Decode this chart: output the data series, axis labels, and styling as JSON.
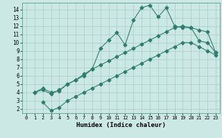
{
  "title": "",
  "xlabel": "Humidex (Indice chaleur)",
  "bg_color": "#cce8e4",
  "line_color": "#2e7d6e",
  "grid_color": "#a8ccc8",
  "xlim": [
    -0.5,
    23.5
  ],
  "ylim": [
    1.5,
    14.8
  ],
  "xticks": [
    0,
    1,
    2,
    3,
    4,
    5,
    6,
    7,
    8,
    9,
    10,
    11,
    12,
    13,
    14,
    15,
    16,
    17,
    18,
    19,
    20,
    21,
    22,
    23
  ],
  "yticks": [
    2,
    3,
    4,
    5,
    6,
    7,
    8,
    9,
    10,
    11,
    12,
    13,
    14
  ],
  "top_x": [
    1,
    2,
    3,
    4,
    5,
    6,
    7,
    8,
    9,
    10,
    11,
    12,
    13,
    14,
    15,
    16,
    17,
    18,
    19,
    20,
    21,
    22,
    23
  ],
  "top_y": [
    4.0,
    4.5,
    4.0,
    4.2,
    5.0,
    5.5,
    6.0,
    6.8,
    9.3,
    10.3,
    11.2,
    9.7,
    12.7,
    14.2,
    14.5,
    13.1,
    14.2,
    12.0,
    11.8,
    11.8,
    10.2,
    10.0,
    8.8
  ],
  "mid_x": [
    1,
    2,
    3,
    4,
    5,
    6,
    7,
    8,
    9,
    10,
    11,
    12,
    13,
    14,
    15,
    16,
    17,
    18,
    19,
    20,
    21,
    22,
    23
  ],
  "mid_y": [
    4.0,
    4.3,
    3.8,
    4.3,
    5.0,
    5.5,
    6.2,
    6.8,
    7.3,
    7.8,
    8.3,
    8.8,
    9.3,
    9.8,
    10.3,
    10.8,
    11.3,
    11.8,
    12.0,
    11.8,
    11.5,
    11.3,
    8.8
  ],
  "bot_x": [
    2,
    3,
    4,
    5,
    6,
    7,
    8,
    9,
    10,
    11,
    12,
    13,
    14,
    15,
    16,
    17,
    18,
    19,
    20,
    21,
    22,
    23
  ],
  "bot_y": [
    2.8,
    1.8,
    2.2,
    3.0,
    3.5,
    4.0,
    4.5,
    5.0,
    5.5,
    6.0,
    6.5,
    7.0,
    7.5,
    8.0,
    8.5,
    9.0,
    9.5,
    10.0,
    10.0,
    9.5,
    9.0,
    8.5
  ]
}
